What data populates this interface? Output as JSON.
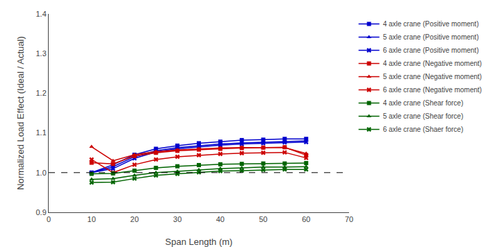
{
  "chart_data": {
    "type": "line",
    "x": [
      10,
      15,
      20,
      25,
      30,
      35,
      40,
      45,
      50,
      55,
      60
    ],
    "series": [
      {
        "name": "4 axle crane (Positive moment)",
        "color": "#0000CD",
        "marker": "square",
        "line_style": "solid",
        "values": [
          1.0,
          1.02,
          1.045,
          1.06,
          1.068,
          1.074,
          1.078,
          1.082,
          1.083,
          1.085,
          1.085
        ]
      },
      {
        "name": "5 axle crane (Positive moment)",
        "color": "#0000CD",
        "marker": "triangle-up",
        "line_style": "solid",
        "values": [
          1.0,
          1.015,
          1.04,
          1.055,
          1.063,
          1.068,
          1.072,
          1.075,
          1.077,
          1.079,
          1.08
        ]
      },
      {
        "name": "6 axle crane (Positive moment)",
        "color": "#0000CD",
        "marker": "x",
        "line_style": "solid",
        "values": [
          1.0,
          1.01,
          1.036,
          1.052,
          1.06,
          1.065,
          1.069,
          1.072,
          1.074,
          1.076,
          1.077
        ]
      },
      {
        "name": "4 axle crane (Negative moment)",
        "color": "#CC0000",
        "marker": "square",
        "line_style": "solid",
        "values": [
          1.025,
          1.022,
          1.042,
          1.05,
          1.055,
          1.058,
          1.06,
          1.062,
          1.063,
          1.064,
          1.044
        ]
      },
      {
        "name": "5 axle crane (Negative moment)",
        "color": "#CC0000",
        "marker": "triangle-up",
        "line_style": "solid",
        "values": [
          1.065,
          1.03,
          1.045,
          1.053,
          1.057,
          1.06,
          1.062,
          1.063,
          1.063,
          1.063,
          1.048
        ]
      },
      {
        "name": "6 axle crane (Negative moment)",
        "color": "#CC0000",
        "marker": "x",
        "line_style": "solid",
        "values": [
          1.033,
          1.0,
          1.02,
          1.033,
          1.04,
          1.044,
          1.047,
          1.049,
          1.05,
          1.051,
          1.037
        ]
      },
      {
        "name": "4 axle crane (Shear force)",
        "color": "#006400",
        "marker": "square",
        "line_style": "solid",
        "values": [
          0.997,
          0.998,
          1.005,
          1.012,
          1.016,
          1.019,
          1.021,
          1.022,
          1.023,
          1.023,
          1.024
        ]
      },
      {
        "name": "5 axle crane (Shear force)",
        "color": "#006400",
        "marker": "triangle-up",
        "line_style": "solid",
        "values": [
          0.983,
          0.985,
          0.993,
          1.0,
          1.003,
          1.007,
          1.01,
          1.012,
          1.014,
          1.014,
          1.015
        ]
      },
      {
        "name": "6 axle crane (Shaer force)",
        "color": "#006400",
        "marker": "x",
        "line_style": "solid",
        "values": [
          0.975,
          0.976,
          0.985,
          0.993,
          0.997,
          1.001,
          1.004,
          1.005,
          1.007,
          1.008,
          1.008
        ]
      }
    ],
    "hlines": [
      {
        "y": 1.0,
        "color": "#000000",
        "line_style": "dashed"
      }
    ],
    "xlabel": "Span Length (m)",
    "ylabel": "Normalized Load Effect (Ideal / Actual)",
    "xlim": [
      0,
      70
    ],
    "xticks": [
      0,
      10,
      20,
      30,
      40,
      50,
      60,
      70
    ],
    "ylim": [
      0.9,
      1.4
    ],
    "yticks": [
      0.9,
      {
        "value": 1.0,
        "label": "1.0"
      },
      1.1,
      1.2,
      1.3,
      1.4
    ],
    "grid": false,
    "legend": "right"
  }
}
